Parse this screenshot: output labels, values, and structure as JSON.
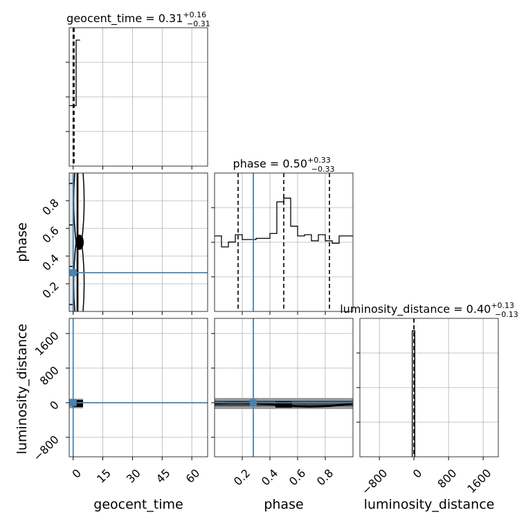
{
  "chart_data": {
    "type": "corner",
    "parameters": [
      "geocent_time",
      "phase",
      "luminosity_distance"
    ],
    "titles": [
      {
        "label": "geocent_time = 0.31",
        "sup": "+0.16",
        "sub": "−0.31"
      },
      {
        "label": "phase = 0.50",
        "sup": "+0.33",
        "sub": "−0.33"
      },
      {
        "label": "luminosity_distance = 0.40",
        "sup": "+0.13",
        "sub": "−0.13"
      }
    ],
    "axes": {
      "geocent_time": {
        "range": [
          -2,
          68
        ],
        "ticks": [
          "0",
          "15",
          "30",
          "45",
          "60"
        ],
        "tick_values": [
          0,
          15,
          30,
          45,
          60
        ]
      },
      "phase": {
        "range": [
          0.0,
          1.0
        ],
        "ticks": [
          "0.2",
          "0.4",
          "0.6",
          "0.8"
        ],
        "tick_values": [
          0.2,
          0.4,
          0.6,
          0.8
        ]
      },
      "luminosity_distance": {
        "range": [
          -1250,
          1950
        ],
        "ticks": [
          "−800",
          "0",
          "800",
          "1600"
        ],
        "tick_values": [
          -800,
          0,
          800,
          1600
        ]
      }
    },
    "truths": {
      "geocent_time": 0.0,
      "phase": 0.28,
      "luminosity_distance": 0.0
    },
    "histograms": {
      "geocent_time": {
        "edges": [
          -2,
          1.5,
          3.5
        ],
        "counts": [
          0.48,
          1.0
        ],
        "quantiles": [
          0.0,
          0.31,
          0.47
        ]
      },
      "phase": {
        "edges": [
          0.0,
          0.05,
          0.1,
          0.15,
          0.2,
          0.25,
          0.3,
          0.35,
          0.4,
          0.45,
          0.5,
          0.55,
          0.6,
          0.65,
          0.7,
          0.75,
          0.8,
          0.85,
          0.9,
          0.95,
          1.0
        ],
        "counts": [
          0.62,
          0.53,
          0.57,
          0.63,
          0.59,
          0.59,
          0.6,
          0.6,
          0.64,
          0.9,
          0.93,
          0.7,
          0.62,
          0.63,
          0.58,
          0.63,
          0.58,
          0.56,
          0.62,
          0.62
        ],
        "quantiles": [
          0.17,
          0.5,
          0.83
        ]
      },
      "luminosity_distance": {
        "edges": [
          -40,
          20
        ],
        "counts": [
          1.0
        ],
        "quantiles": [
          0.27,
          0.4,
          0.53
        ]
      }
    },
    "grid": true
  }
}
